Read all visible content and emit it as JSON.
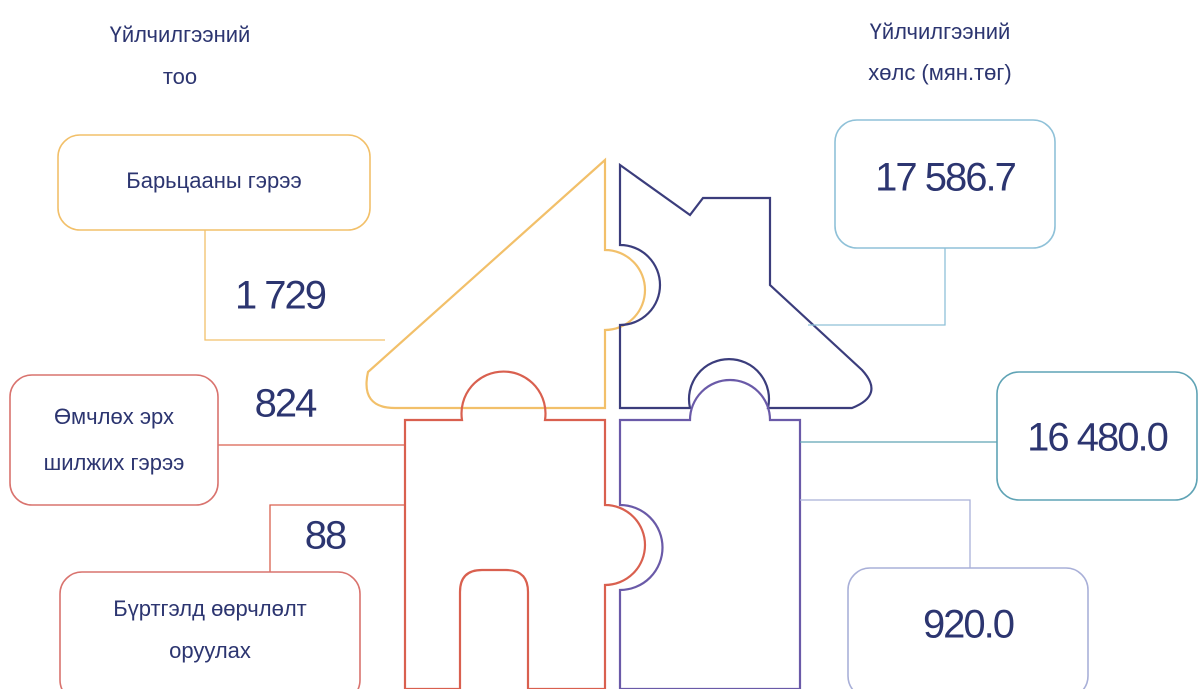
{
  "left_header": [
    "Үйлчилгээний",
    "тоо"
  ],
  "right_header": [
    "Үйлчилгээний",
    "хөлс (мян.төг)"
  ],
  "items": [
    {
      "label": [
        "Барьцааны гэрээ"
      ],
      "count": "1 729",
      "fee": "17 586.7"
    },
    {
      "label": [
        "Өмчлөх эрх",
        "шилжих гэрээ"
      ],
      "count": "824",
      "fee": "16 480.0"
    },
    {
      "label": [
        "Бүртгэлд  өөрчлөлт",
        "оруулах"
      ],
      "count": "88",
      "fee": "920.0"
    }
  ]
}
